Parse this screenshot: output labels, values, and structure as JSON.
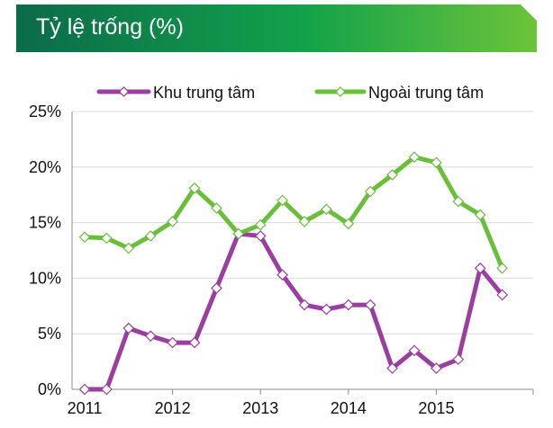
{
  "title": "Tỷ lệ trống (%)",
  "colors": {
    "banner_start": "#0b6b4a",
    "banner_mid": "#12a24a",
    "banner_end": "#6cc33a",
    "central": "#9a3ea0",
    "outside": "#6abf3a"
  },
  "chart_data": {
    "type": "line",
    "title": "Tỷ lệ trống (%)",
    "xlabel": "",
    "ylabel": "",
    "ylim": [
      0,
      25
    ],
    "xlim": [
      2011,
      2016
    ],
    "yticks": [
      "0%",
      "5%",
      "10%",
      "15%",
      "20%",
      "25%"
    ],
    "ytick_values": [
      0,
      5,
      10,
      15,
      20,
      25
    ],
    "xticks": [
      "2011",
      "2012",
      "2013",
      "2014",
      "2015"
    ],
    "xtick_values": [
      2011,
      2012,
      2013,
      2014,
      2015
    ],
    "grid": "horizontal",
    "legend": "top",
    "x": [
      2011.0,
      2011.25,
      2011.5,
      2011.75,
      2012.0,
      2012.25,
      2012.5,
      2012.75,
      2013.0,
      2013.25,
      2013.5,
      2013.75,
      2014.0,
      2014.25,
      2014.5,
      2014.75,
      2015.0,
      2015.25,
      2015.5,
      2015.75
    ],
    "series": [
      {
        "name": "Khu trung tâm",
        "color": "#9a3ea0",
        "values": [
          0,
          0,
          5.5,
          4.8,
          4.2,
          4.2,
          9.1,
          14.0,
          13.8,
          10.3,
          7.6,
          7.2,
          7.6,
          7.6,
          1.9,
          3.5,
          1.9,
          2.7,
          10.9,
          8.5
        ]
      },
      {
        "name": "Ngoài trung tâm",
        "color": "#6abf3a",
        "values": [
          13.7,
          13.6,
          12.7,
          13.8,
          15.1,
          18.1,
          16.3,
          14.0,
          14.8,
          17.0,
          15.1,
          16.2,
          14.9,
          17.8,
          19.3,
          20.9,
          20.4,
          16.9,
          15.7,
          10.9
        ]
      }
    ]
  }
}
